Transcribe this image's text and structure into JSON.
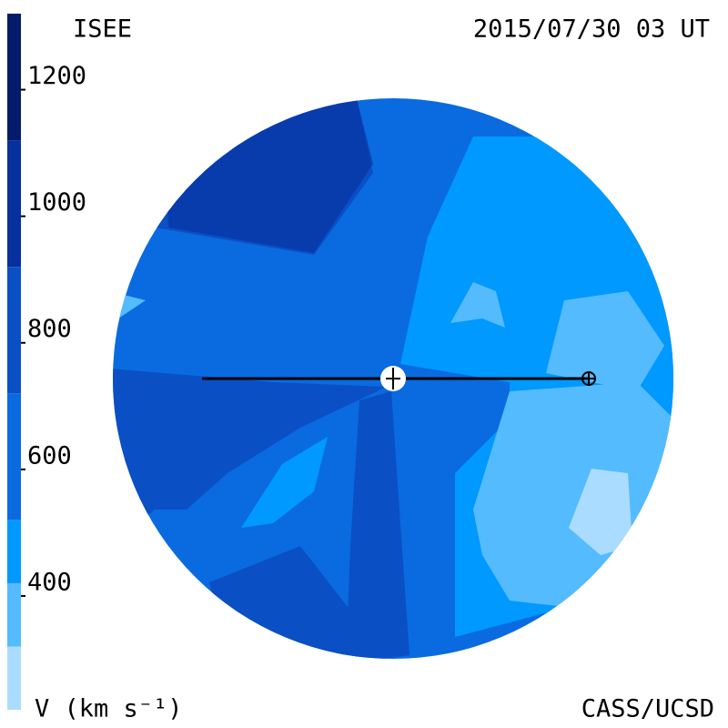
{
  "chart_data": {
    "type": "map",
    "title": "ISEE",
    "subtitle": "2015/07/30 03 UT",
    "colorbar_label": "V (km s⁻¹)",
    "credit": "CASS/UCSD",
    "clim": [
      200,
      1300
    ],
    "levels": [
      200,
      300,
      400,
      500,
      700,
      900,
      1100,
      1300
    ],
    "level_colors": [
      "#aadcff",
      "#55bbff",
      "#0099ff",
      "#0a6be0",
      "#0a4fc4",
      "#06309e",
      "#041b6a"
    ],
    "yticks": [
      400,
      600,
      800,
      1000,
      1200
    ]
  }
}
